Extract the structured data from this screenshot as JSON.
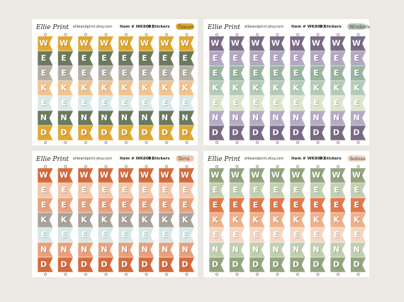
{
  "sheets": [
    {
      "logo": "Ellie Print",
      "shop": "ellieandprint.etsy.com",
      "item": "Item # WK8001",
      "count": "8 Stickers",
      "theme": "Tuscan",
      "letters": [
        "W",
        "E",
        "E",
        "K",
        "E",
        "N",
        "D"
      ]
    },
    {
      "logo": "Ellie Print",
      "shop": "ellieandprint.etsy.com",
      "item": "Item # WK8001",
      "count": "8 Stickers",
      "theme": "Mirabelle",
      "letters": [
        "W",
        "E",
        "E",
        "K",
        "E",
        "N",
        "D"
      ]
    },
    {
      "logo": "Ellie Print",
      "shop": "ellieandprint.etsy.com",
      "item": "Item # WK8001",
      "count": "8 Stickers",
      "theme": "Terra",
      "letters": [
        "W",
        "E",
        "E",
        "K",
        "E",
        "N",
        "D"
      ]
    },
    {
      "logo": "Ellie Print",
      "shop": "ellieandprint.etsy.com",
      "item": "Item # WK8001",
      "count": "8 Stickers",
      "theme": "Sedona",
      "letters": [
        "W",
        "E",
        "E",
        "K",
        "E",
        "N",
        "D"
      ]
    }
  ]
}
